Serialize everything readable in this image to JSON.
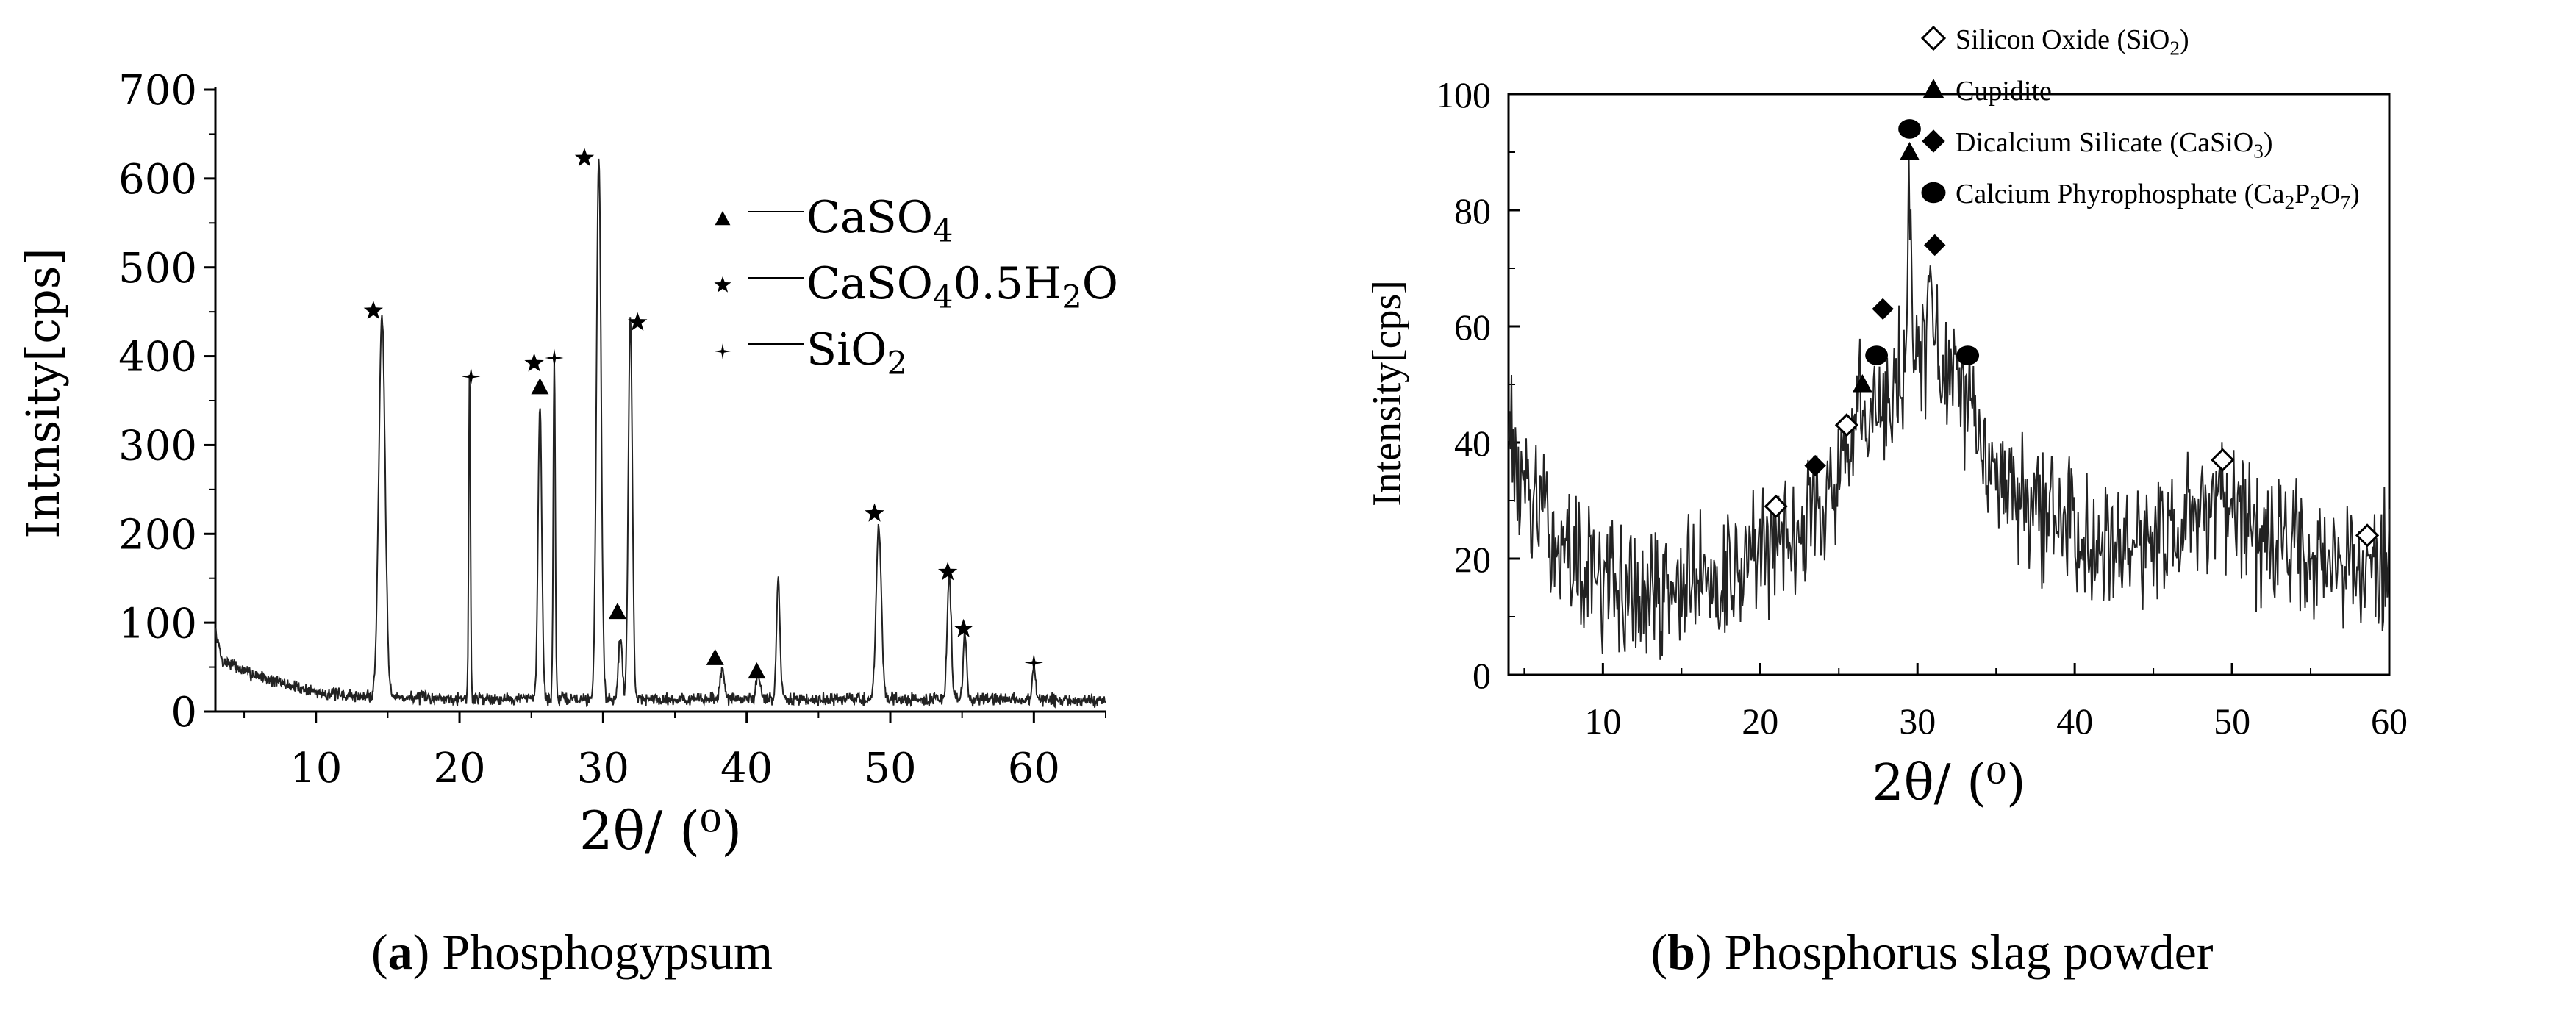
{
  "chart_data": [
    {
      "type": "line",
      "caption": {
        "letter": "a",
        "text": "Phosphogypsum"
      },
      "xlabel": "2θ/ (⁰)",
      "ylabel": "Intnsity[cps]",
      "xlim": [
        3,
        65
      ],
      "ylim": [
        0,
        700
      ],
      "xticks": [
        10,
        20,
        30,
        40,
        50,
        60
      ],
      "yticks": [
        0,
        100,
        200,
        300,
        400,
        500,
        600,
        700
      ],
      "baseline": [
        [
          3,
          90
        ],
        [
          3.5,
          55
        ],
        [
          4,
          55
        ],
        [
          5,
          45
        ],
        [
          6,
          40
        ],
        [
          7,
          35
        ],
        [
          8,
          30
        ],
        [
          9,
          26
        ],
        [
          10,
          22
        ],
        [
          11,
          20
        ],
        [
          12,
          18
        ],
        [
          13,
          17
        ],
        [
          20,
          15
        ],
        [
          30,
          14
        ],
        [
          40,
          14
        ],
        [
          50,
          14
        ],
        [
          60,
          13
        ],
        [
          65,
          12
        ]
      ],
      "noise_amplitude": 9,
      "peaks": [
        {
          "x": 14.6,
          "y": 430,
          "w": 0.22
        },
        {
          "x": 20.7,
          "y": 370,
          "w": 0.06
        },
        {
          "x": 25.6,
          "y": 330,
          "w": 0.13
        },
        {
          "x": 26.6,
          "y": 385,
          "w": 0.07
        },
        {
          "x": 29.7,
          "y": 610,
          "w": 0.16
        },
        {
          "x": 31.9,
          "y": 430,
          "w": 0.14
        },
        {
          "x": 31.2,
          "y": 70,
          "w": 0.13
        },
        {
          "x": 38.3,
          "y": 35,
          "w": 0.15
        },
        {
          "x": 40.8,
          "y": 30,
          "w": 0.15
        },
        {
          "x": 42.2,
          "y": 135,
          "w": 0.12
        },
        {
          "x": 49.2,
          "y": 195,
          "w": 0.18
        },
        {
          "x": 54.1,
          "y": 140,
          "w": 0.14
        },
        {
          "x": 55.2,
          "y": 75,
          "w": 0.12
        },
        {
          "x": 60.0,
          "y": 40,
          "w": 0.11
        }
      ],
      "markers": [
        {
          "symbol": "star",
          "x": 14.0,
          "y": 451
        },
        {
          "symbol": "plus",
          "x": 20.8,
          "y": 377
        },
        {
          "symbol": "star",
          "x": 25.2,
          "y": 392
        },
        {
          "symbol": "triangle",
          "x": 25.6,
          "y": 365
        },
        {
          "symbol": "plus",
          "x": 26.6,
          "y": 398
        },
        {
          "symbol": "star",
          "x": 28.7,
          "y": 623
        },
        {
          "symbol": "triangle",
          "x": 31.0,
          "y": 112
        },
        {
          "symbol": "star",
          "x": 32.4,
          "y": 438
        },
        {
          "symbol": "triangle",
          "x": 37.8,
          "y": 60
        },
        {
          "symbol": "triangle",
          "x": 40.7,
          "y": 45
        },
        {
          "symbol": "star",
          "x": 48.9,
          "y": 223
        },
        {
          "symbol": "star",
          "x": 54.0,
          "y": 157
        },
        {
          "symbol": "star",
          "x": 55.1,
          "y": 93
        },
        {
          "symbol": "plus",
          "x": 60.0,
          "y": 55
        }
      ],
      "legend": {
        "placement": "upper-right",
        "entries": [
          {
            "symbol": "triangle",
            "label": "CaSO",
            "sub": "4",
            "tail": ""
          },
          {
            "symbol": "star",
            "label": "CaSO",
            "sub": "4",
            "tail": "0.5H",
            "sub2": "2",
            "tail2": "O"
          },
          {
            "symbol": "plus",
            "label": "SiO",
            "sub": "2",
            "tail": ""
          }
        ]
      }
    },
    {
      "type": "line",
      "caption": {
        "letter": "b",
        "text": "Phosphorus slag powder"
      },
      "xlabel": "2θ/ (⁰)",
      "ylabel": "Intensity[cps]",
      "xlim": [
        4,
        60
      ],
      "ylim": [
        0,
        100
      ],
      "xticks": [
        10,
        20,
        30,
        40,
        50,
        60
      ],
      "yticks": [
        0,
        20,
        40,
        60,
        80,
        100
      ],
      "baseline": [
        [
          4,
          36
        ],
        [
          5,
          33
        ],
        [
          6,
          27
        ],
        [
          8,
          20
        ],
        [
          10,
          16
        ],
        [
          12,
          14
        ],
        [
          14,
          14
        ],
        [
          16,
          16
        ],
        [
          18,
          18
        ],
        [
          20,
          21
        ],
        [
          22,
          25
        ],
        [
          24,
          30
        ],
        [
          26,
          37
        ],
        [
          28,
          46
        ],
        [
          29,
          52
        ],
        [
          30,
          55
        ],
        [
          31,
          55
        ],
        [
          32,
          51
        ],
        [
          33,
          46
        ],
        [
          34,
          40
        ],
        [
          36,
          32
        ],
        [
          38,
          28
        ],
        [
          40,
          25
        ],
        [
          44,
          23
        ],
        [
          47,
          25
        ],
        [
          49,
          28
        ],
        [
          51,
          24
        ],
        [
          54,
          22
        ],
        [
          57,
          20
        ],
        [
          60,
          19
        ]
      ],
      "noise_amplitude": 10,
      "peaks": [
        {
          "x": 29.5,
          "y": 30,
          "w": 0.12
        },
        {
          "x": 30.9,
          "y": 13,
          "w": 0.15
        },
        {
          "x": 26.3,
          "y": 12,
          "w": 0.12
        },
        {
          "x": 4.1,
          "y": 12,
          "w": 0.12
        },
        {
          "x": 47.3,
          "y": 10,
          "w": 0.12
        }
      ],
      "markers": [
        {
          "symbol": "diamond-open",
          "x": 21.0,
          "y": 29
        },
        {
          "symbol": "diamond",
          "x": 23.5,
          "y": 36
        },
        {
          "symbol": "diamond-open",
          "x": 25.5,
          "y": 43
        },
        {
          "symbol": "triangle",
          "x": 26.5,
          "y": 50
        },
        {
          "symbol": "circle",
          "x": 27.4,
          "y": 55
        },
        {
          "symbol": "diamond",
          "x": 27.8,
          "y": 63
        },
        {
          "symbol": "triangle",
          "x": 29.5,
          "y": 90
        },
        {
          "symbol": "circle",
          "x": 29.5,
          "y": 94
        },
        {
          "symbol": "diamond",
          "x": 31.1,
          "y": 74
        },
        {
          "symbol": "circle",
          "x": 33.2,
          "y": 55
        },
        {
          "symbol": "diamond-open",
          "x": 49.4,
          "y": 37
        },
        {
          "symbol": "diamond-open",
          "x": 58.6,
          "y": 24
        }
      ],
      "legend": {
        "placement": "top",
        "entries": [
          {
            "symbol": "diamond-open",
            "label": "Silicon Oxide (SiO",
            "sub": "2",
            "tail": ")"
          },
          {
            "symbol": "triangle",
            "label": "Cupidite",
            "sub": "",
            "tail": ""
          },
          {
            "symbol": "diamond",
            "label": "Dicalcium Silicate (CaSiO",
            "sub": "3",
            "tail": ")"
          },
          {
            "symbol": "circle",
            "label": "Calcium Phyrophosphate (Ca",
            "sub": "2",
            "tail": "P",
            "sub2": "2",
            "tail2": "O",
            "sub3": "7",
            "tail3": ")"
          }
        ]
      }
    }
  ]
}
